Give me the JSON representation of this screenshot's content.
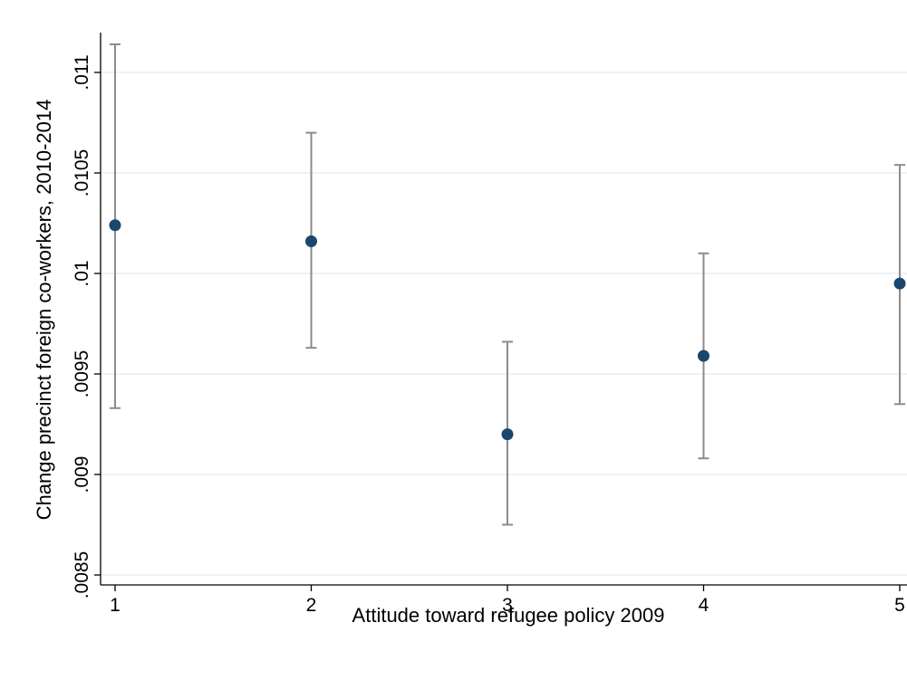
{
  "chart_data": {
    "type": "scatter",
    "title": "",
    "xlabel": "Attitude toward refugee policy 2009",
    "ylabel": "Change precinct foreign co-workers, 2010-2014",
    "x_ticks": [
      "1",
      "2",
      "3",
      "4",
      "5"
    ],
    "y_ticks": [
      ".0085",
      ".009",
      ".0095",
      ".01",
      ".0105",
      ".011"
    ],
    "y_tick_values": [
      0.0085,
      0.009,
      0.0095,
      0.01,
      0.0105,
      0.011
    ],
    "xlim": [
      1,
      5
    ],
    "ylim": [
      0.0084,
      0.01115
    ],
    "grid": "horizontal",
    "legend": "none",
    "points": [
      {
        "x": 1,
        "y": 0.01024,
        "ci_low": 0.00933,
        "ci_high": 0.01114
      },
      {
        "x": 2,
        "y": 0.01016,
        "ci_low": 0.00963,
        "ci_high": 0.0107
      },
      {
        "x": 3,
        "y": 0.0092,
        "ci_low": 0.00875,
        "ci_high": 0.00966
      },
      {
        "x": 4,
        "y": 0.00959,
        "ci_low": 0.00908,
        "ci_high": 0.0101
      },
      {
        "x": 5,
        "y": 0.00995,
        "ci_low": 0.00935,
        "ci_high": 0.01054
      }
    ],
    "colors": {
      "marker": "#1a476f",
      "ci_line": "#8c8c8c",
      "grid": "#e6eef2",
      "axis": "#000000"
    }
  }
}
